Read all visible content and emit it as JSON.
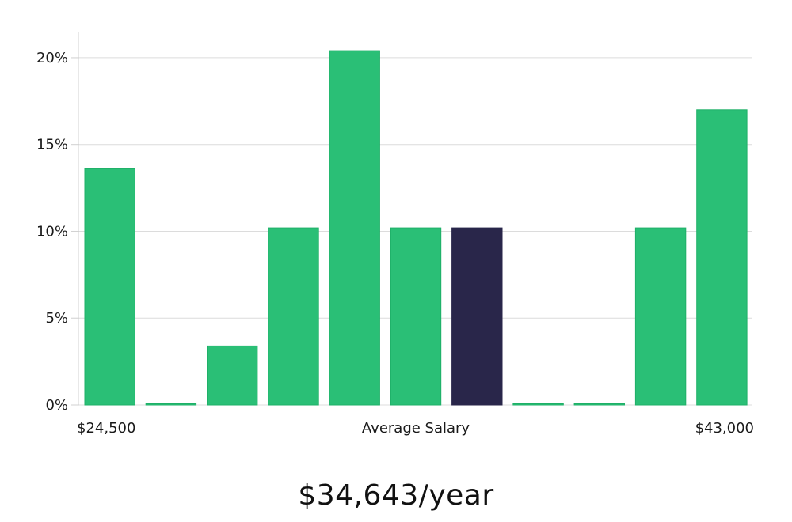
{
  "chart_data": {
    "type": "bar",
    "bins": 11,
    "values": [
      13.6,
      0,
      3.4,
      10.2,
      20.4,
      10.2,
      10.2,
      0,
      0,
      10.2,
      17.0
    ],
    "highlight_index": 6,
    "y_ticks": [
      "0%",
      "5%",
      "10%",
      "15%",
      "20%"
    ],
    "ylim": [
      0,
      21.5
    ],
    "x_min_label": "$24,500",
    "x_center_label": "Average Salary",
    "x_max_label": "$43,000",
    "grid": true,
    "colors": {
      "bar": "#2abf76",
      "bar_edge": "#1fb068",
      "highlight": "#29264a"
    }
  },
  "average_salary": "$34,643/year"
}
